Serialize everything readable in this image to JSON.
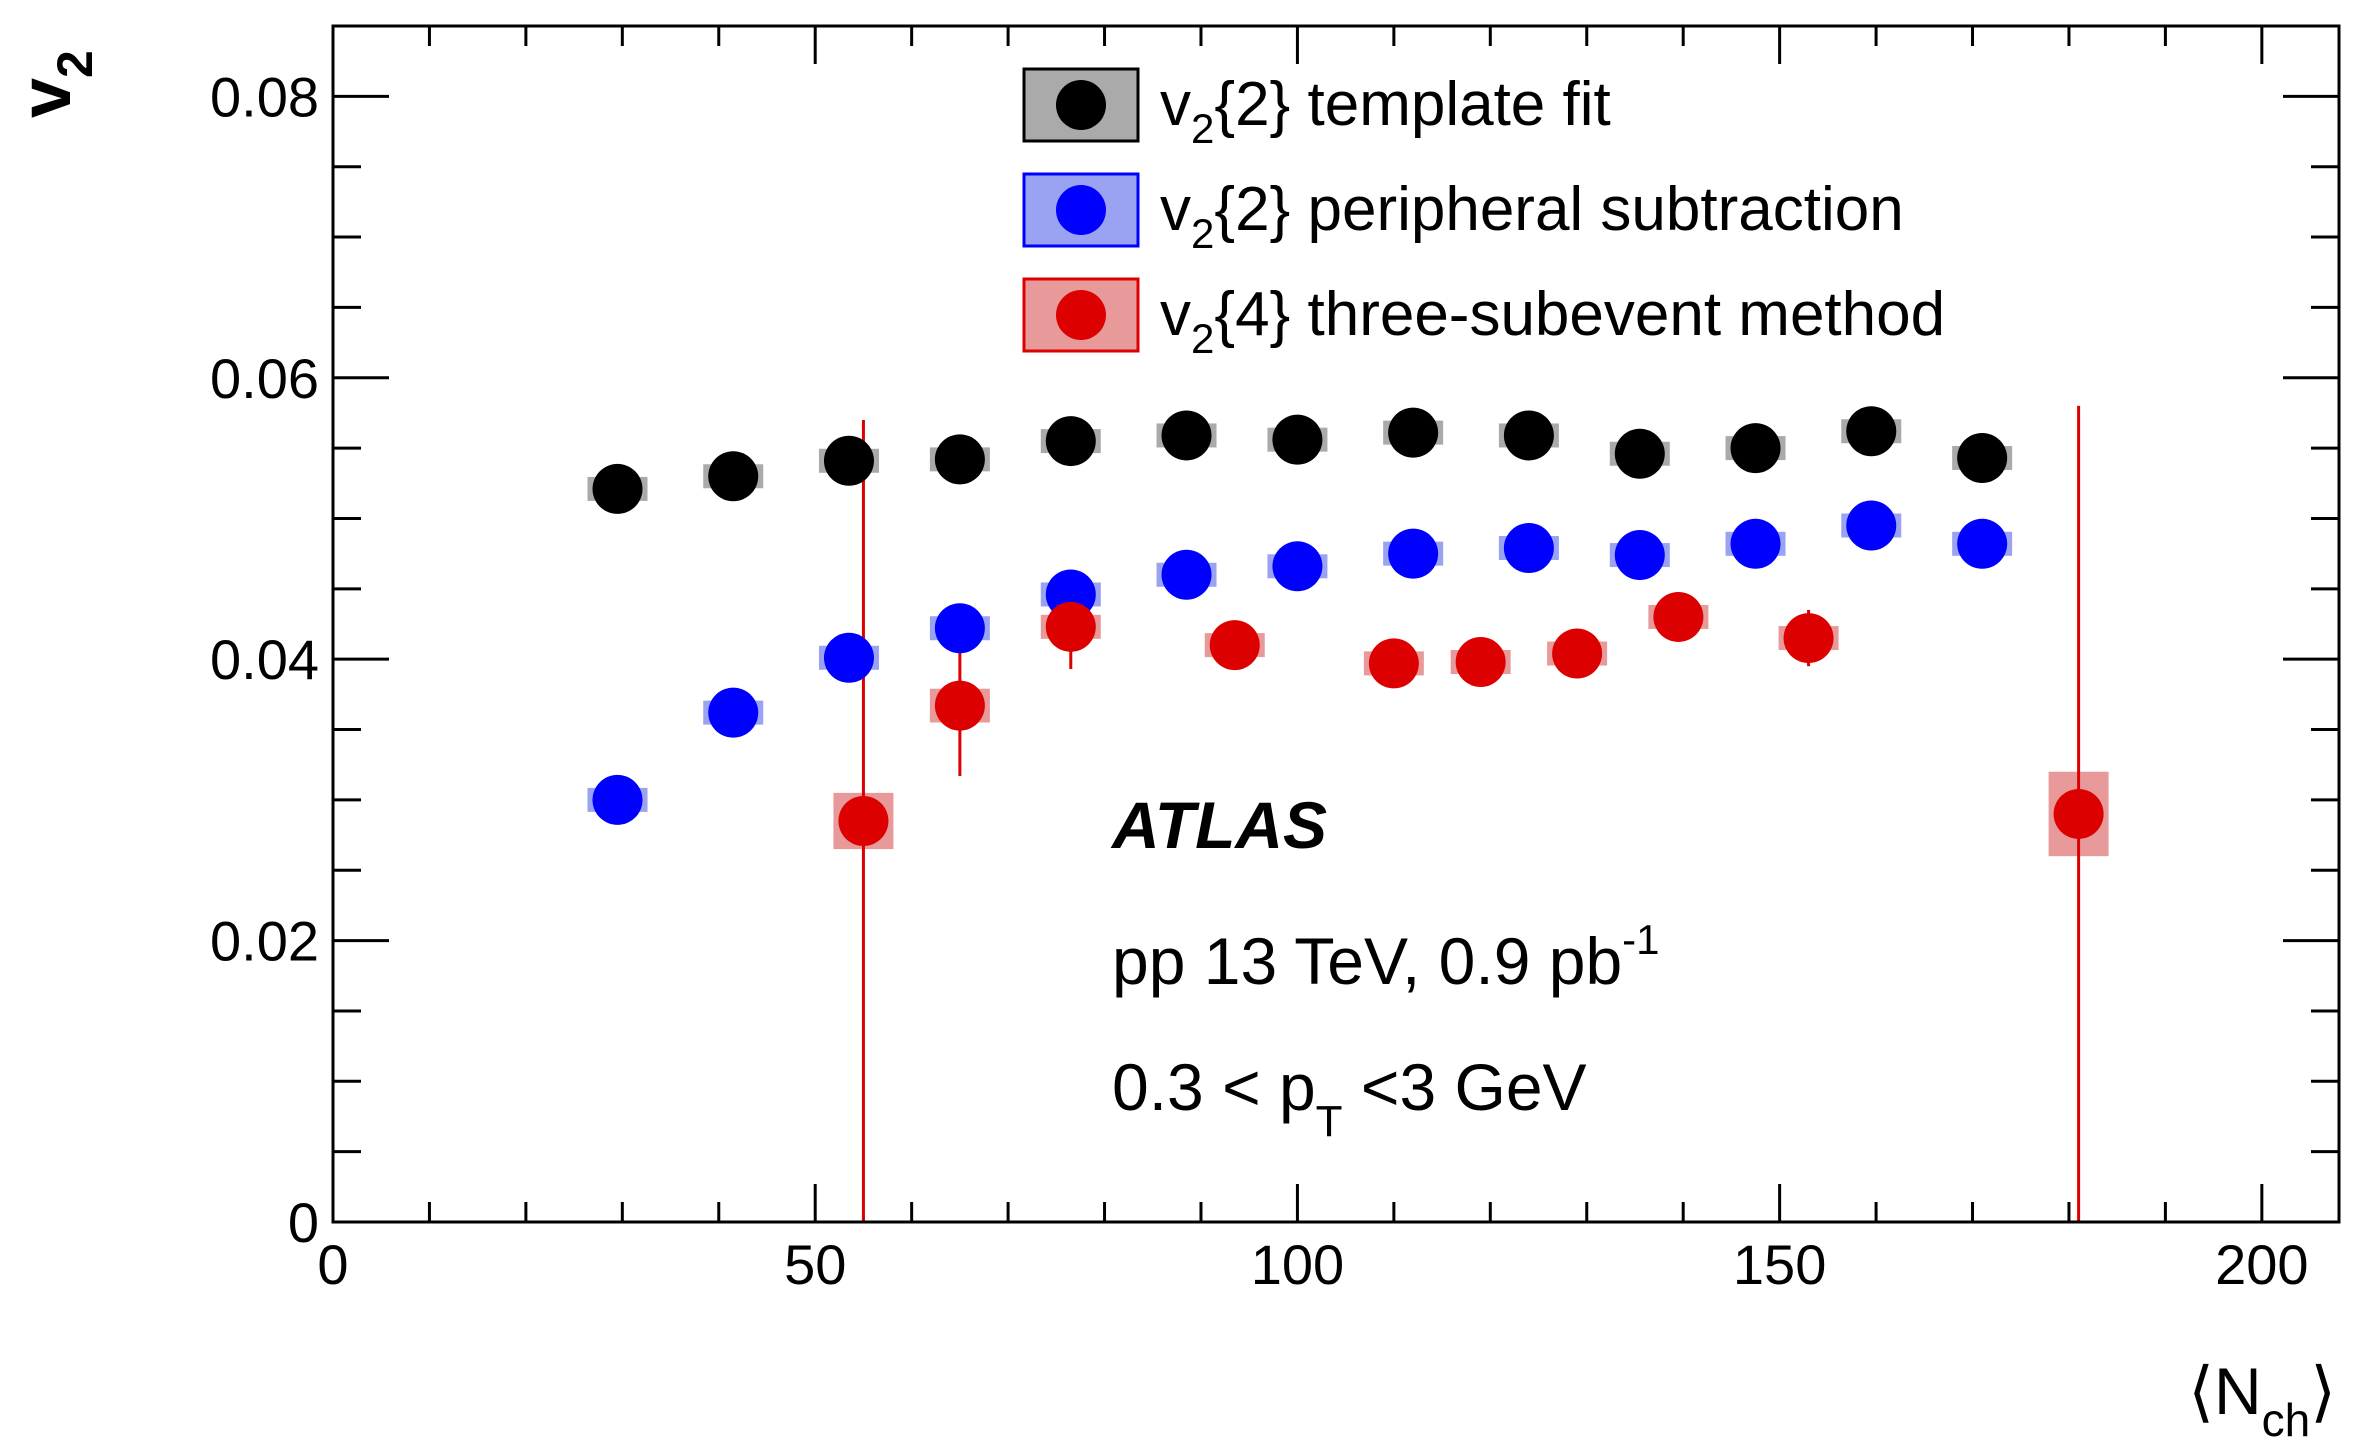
{
  "chart_data": {
    "type": "scatter",
    "xlabel": "⟨N_ch⟩",
    "ylabel": "v_2",
    "xlim": [
      0,
      208
    ],
    "ylim": [
      0,
      0.085
    ],
    "x_ticks": [
      "0",
      "50",
      "100",
      "150",
      "200"
    ],
    "y_ticks": [
      "0",
      "0.02",
      "0.04",
      "0.06",
      "0.08"
    ],
    "grid": false,
    "legend_position": "top-center",
    "series": [
      {
        "name": "v2{2} template fit",
        "name_main": "v",
        "name_sub": "2",
        "name_rest": "{2} template fit",
        "color": "#000000",
        "band_color": "#aaaaaa",
        "x": [
          29.5,
          41.5,
          53.5,
          65,
          76.5,
          88.5,
          100,
          112,
          124,
          135.5,
          147.5,
          159.5,
          171
        ],
        "y": [
          0.0521,
          0.053,
          0.0541,
          0.0542,
          0.0555,
          0.0559,
          0.0556,
          0.0561,
          0.0559,
          0.0546,
          0.055,
          0.0562,
          0.0543
        ],
        "syst": [
          0.0008,
          0.0008,
          0.0008,
          0.0008,
          0.0008,
          0.0008,
          0.0008,
          0.0008,
          0.0008,
          0.0008,
          0.0008,
          0.0008,
          0.0008
        ],
        "stat": [
          0,
          0,
          0,
          0,
          0,
          0,
          0,
          0,
          0,
          0,
          0,
          0,
          0
        ]
      },
      {
        "name": "v2{2} peripheral subtraction",
        "name_main": "v",
        "name_sub": "2",
        "name_rest": "{2} peripheral subtraction",
        "color": "#0000ff",
        "band_color": "#9aa2f2",
        "x": [
          29.5,
          41.5,
          53.5,
          65,
          76.5,
          88.5,
          100,
          112,
          124,
          135.5,
          147.5,
          159.5,
          171
        ],
        "y": [
          0.03,
          0.0362,
          0.0401,
          0.0422,
          0.0446,
          0.046,
          0.0466,
          0.0475,
          0.0479,
          0.0474,
          0.0482,
          0.0495,
          0.0482
        ],
        "syst": [
          0.0005,
          0.0006,
          0.0007,
          0.0008,
          0.0008,
          0.0008,
          0.0008,
          0.0008,
          0.0008,
          0.0008,
          0.0008,
          0.0008,
          0.0008
        ],
        "stat": [
          0,
          0,
          0,
          0,
          0,
          0,
          0,
          0,
          0,
          0,
          0,
          0,
          0
        ]
      },
      {
        "name": "v2{4} three-subevent method",
        "name_main": "v",
        "name_sub": "2",
        "name_rest": "{4} three-subevent method",
        "color": "#dd0000",
        "band_color": "#e89a9a",
        "x": [
          55,
          65,
          76.5,
          93.5,
          110,
          119,
          129,
          139.5,
          153,
          181
        ],
        "y": [
          0.0285,
          0.0367,
          0.0423,
          0.041,
          0.0397,
          0.0398,
          0.0404,
          0.043,
          0.0415,
          0.029
        ],
        "syst": [
          0.002,
          0.0012,
          0.0008,
          0.0004,
          0.0004,
          0.0004,
          0.0004,
          0.0004,
          0.0005,
          0.003
        ],
        "stat": [
          0.0285,
          0.005,
          0.003,
          0.0008,
          0.0006,
          0.0006,
          0.0008,
          0.0008,
          0.002,
          0.029
        ]
      }
    ],
    "annotations": {
      "experiment": "ATLAS",
      "line1_main": "pp 13 TeV, 0.9 pb",
      "line1_sup": "-1",
      "line2_before": "0.3 < p",
      "line2_sub": "T",
      "line2_after": " <3 GeV"
    }
  }
}
